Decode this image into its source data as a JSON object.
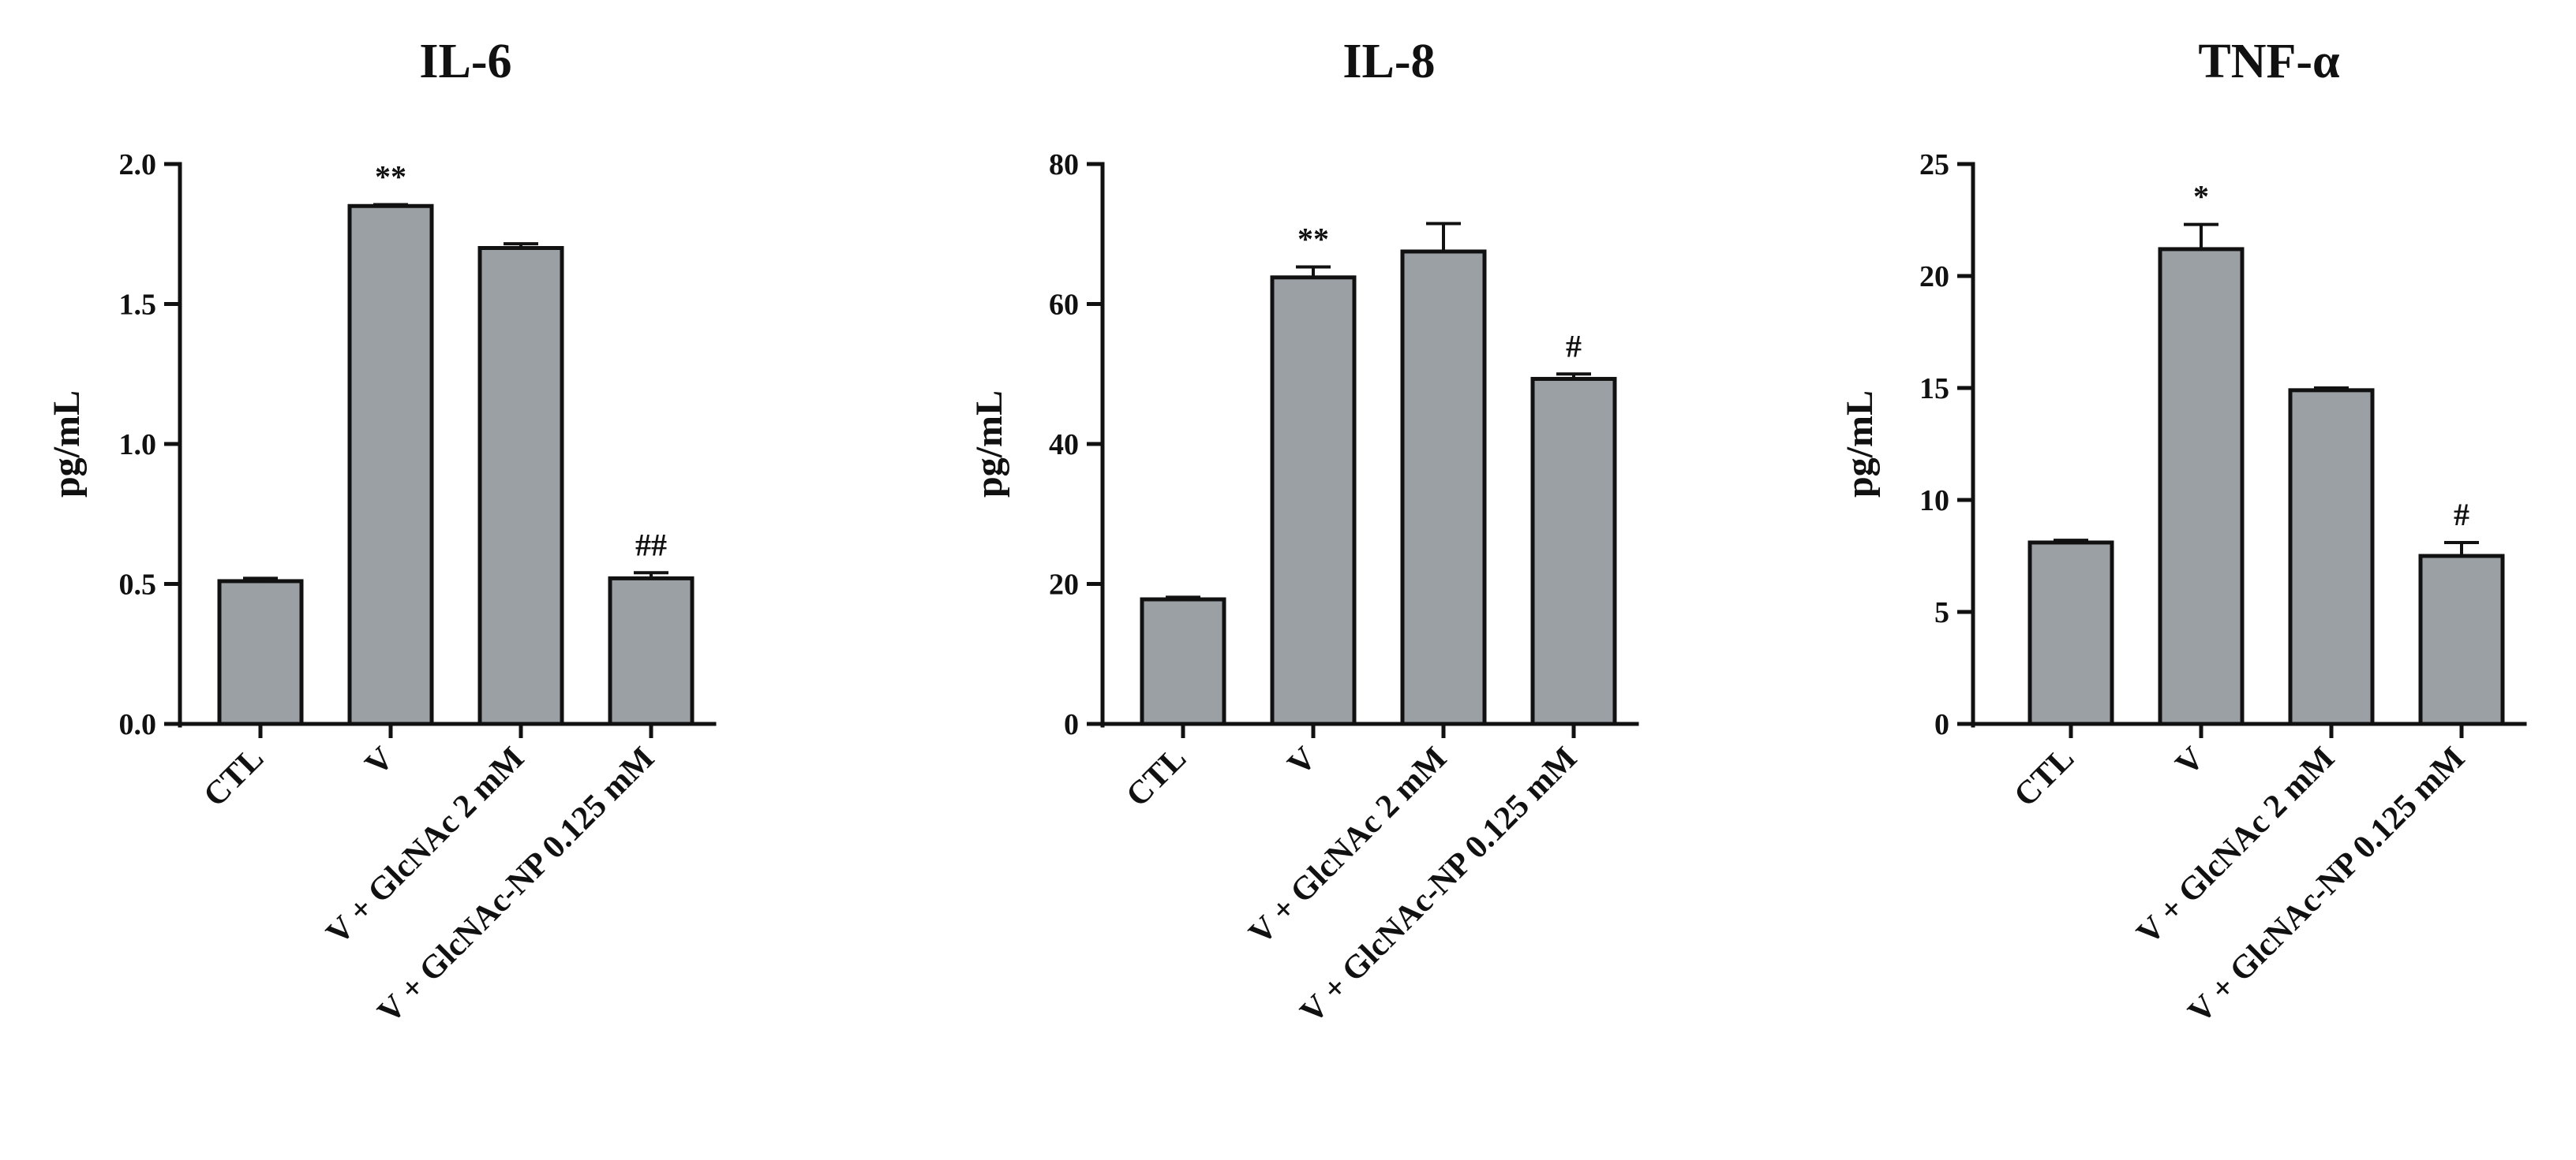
{
  "chart_data": [
    {
      "type": "bar",
      "title": "IL-6",
      "ylabel": "pg/mL",
      "xlabel": "",
      "ylim": [
        0,
        2.0
      ],
      "yticks": [
        "0.0",
        "0.5",
        "1.0",
        "1.5",
        "2.0"
      ],
      "ytick_values": [
        0,
        0.5,
        1.0,
        1.5,
        2.0
      ],
      "categories": [
        "CTL",
        "V",
        "V + GlcNAc 2 mM",
        "V + GlcNAc-NP 0.125 mM"
      ],
      "values": [
        0.51,
        1.85,
        1.7,
        0.52
      ],
      "errors": [
        0.01,
        0.005,
        0.015,
        0.02
      ],
      "significance": [
        "",
        "**",
        "",
        "##"
      ],
      "bar_color": "#9ba0a5",
      "grid": false
    },
    {
      "type": "bar",
      "title": "IL-8",
      "ylabel": "pg/mL",
      "xlabel": "",
      "ylim": [
        0,
        80
      ],
      "yticks": [
        "0",
        "20",
        "40",
        "60",
        "80"
      ],
      "ytick_values": [
        0,
        20,
        40,
        60,
        80
      ],
      "categories": [
        "CTL",
        "V",
        "V + GlcNAc 2 mM",
        "V + GlcNAc-NP 0.125 mM"
      ],
      "values": [
        17.8,
        63.8,
        67.5,
        49.3
      ],
      "errors": [
        0.3,
        1.5,
        4.0,
        0.7
      ],
      "significance": [
        "",
        "**",
        "",
        "#"
      ],
      "bar_color": "#9ba0a5",
      "grid": false
    },
    {
      "type": "bar",
      "title": "TNF-α",
      "ylabel": "pg/mL",
      "xlabel": "",
      "ylim": [
        0,
        25
      ],
      "yticks": [
        "0",
        "5",
        "10",
        "15",
        "20",
        "25"
      ],
      "ytick_values": [
        0,
        5,
        10,
        15,
        20,
        25
      ],
      "categories": [
        "CTL",
        "V",
        "V + GlcNAc 2 mM",
        "V + GlcNAc-NP 0.125 mM"
      ],
      "values": [
        8.1,
        21.2,
        14.9,
        7.5
      ],
      "errors": [
        0.1,
        1.1,
        0.1,
        0.6
      ],
      "significance": [
        "",
        "*",
        "",
        "#"
      ],
      "bar_color": "#9ba0a5",
      "grid": false
    }
  ]
}
